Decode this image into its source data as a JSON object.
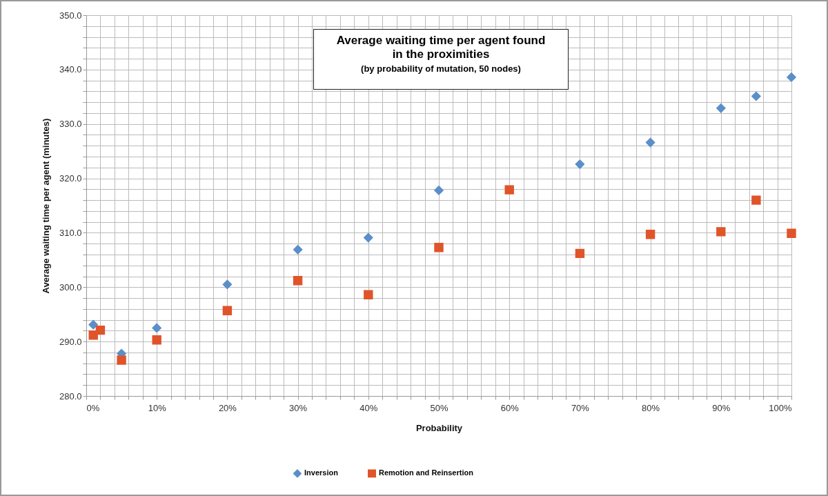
{
  "chart_data": {
    "type": "scatter",
    "title": "Average waiting time per agent found\nin the proximities",
    "subtitle": "(by probability of mutation, 50 nodes)",
    "xlabel": "Probability",
    "ylabel": "Average waiting time per agent (minutes)",
    "series": [
      {
        "name": "Inversion",
        "color": "#5b8fc9",
        "marker": "diamond",
        "x": [
          1,
          5,
          10,
          20,
          30,
          40,
          50,
          70,
          80,
          90,
          95,
          100
        ],
        "values": [
          293.1,
          287.8,
          292.5,
          300.5,
          306.9,
          309.1,
          317.8,
          322.6,
          326.6,
          332.9,
          335.1,
          338.6
        ]
      },
      {
        "name": "Remotion and Reinsertion",
        "color": "#e0542a",
        "marker": "square",
        "x": [
          1,
          2,
          5,
          10,
          20,
          30,
          40,
          50,
          60,
          70,
          80,
          90,
          95,
          100
        ],
        "values": [
          291.2,
          292.1,
          286.6,
          290.3,
          295.7,
          301.2,
          298.6,
          307.3,
          317.9,
          306.2,
          309.7,
          310.2,
          316.0,
          309.9
        ]
      }
    ],
    "xlim": [
      0,
      100
    ],
    "ylim": [
      280,
      350
    ],
    "xticks": [
      {
        "value": 0,
        "label": "0%"
      },
      {
        "value": 2,
        "label": null
      },
      {
        "value": 4,
        "label": null
      },
      {
        "value": 6,
        "label": null
      },
      {
        "value": 8,
        "label": null
      },
      {
        "value": 10,
        "label": "10%"
      },
      {
        "value": 12,
        "label": null
      },
      {
        "value": 14,
        "label": null
      },
      {
        "value": 16,
        "label": null
      },
      {
        "value": 18,
        "label": null
      },
      {
        "value": 20,
        "label": "20%"
      },
      {
        "value": 22,
        "label": null
      },
      {
        "value": 24,
        "label": null
      },
      {
        "value": 26,
        "label": null
      },
      {
        "value": 28,
        "label": null
      },
      {
        "value": 30,
        "label": "30%"
      },
      {
        "value": 32,
        "label": null
      },
      {
        "value": 34,
        "label": null
      },
      {
        "value": 36,
        "label": null
      },
      {
        "value": 38,
        "label": null
      },
      {
        "value": 40,
        "label": "40%"
      },
      {
        "value": 42,
        "label": null
      },
      {
        "value": 44,
        "label": null
      },
      {
        "value": 46,
        "label": null
      },
      {
        "value": 48,
        "label": null
      },
      {
        "value": 50,
        "label": "50%"
      },
      {
        "value": 52,
        "label": null
      },
      {
        "value": 54,
        "label": null
      },
      {
        "value": 56,
        "label": null
      },
      {
        "value": 58,
        "label": null
      },
      {
        "value": 60,
        "label": "60%"
      },
      {
        "value": 62,
        "label": null
      },
      {
        "value": 64,
        "label": null
      },
      {
        "value": 66,
        "label": null
      },
      {
        "value": 68,
        "label": null
      },
      {
        "value": 70,
        "label": "70%"
      },
      {
        "value": 72,
        "label": null
      },
      {
        "value": 74,
        "label": null
      },
      {
        "value": 76,
        "label": null
      },
      {
        "value": 78,
        "label": null
      },
      {
        "value": 80,
        "label": "80%"
      },
      {
        "value": 82,
        "label": null
      },
      {
        "value": 84,
        "label": null
      },
      {
        "value": 86,
        "label": null
      },
      {
        "value": 88,
        "label": null
      },
      {
        "value": 90,
        "label": "90%"
      },
      {
        "value": 92,
        "label": null
      },
      {
        "value": 94,
        "label": null
      },
      {
        "value": 96,
        "label": null
      },
      {
        "value": 98,
        "label": null
      },
      {
        "value": 100,
        "label": "100%"
      }
    ],
    "yticks": [
      {
        "value": 280,
        "label": "280.0"
      },
      {
        "value": 282,
        "label": null
      },
      {
        "value": 284,
        "label": null
      },
      {
        "value": 286,
        "label": null
      },
      {
        "value": 288,
        "label": null
      },
      {
        "value": 290,
        "label": "290.0"
      },
      {
        "value": 292,
        "label": null
      },
      {
        "value": 294,
        "label": null
      },
      {
        "value": 296,
        "label": null
      },
      {
        "value": 298,
        "label": null
      },
      {
        "value": 300,
        "label": "300.0"
      },
      {
        "value": 302,
        "label": null
      },
      {
        "value": 304,
        "label": null
      },
      {
        "value": 306,
        "label": null
      },
      {
        "value": 308,
        "label": null
      },
      {
        "value": 310,
        "label": "310.0"
      },
      {
        "value": 312,
        "label": null
      },
      {
        "value": 314,
        "label": null
      },
      {
        "value": 316,
        "label": null
      },
      {
        "value": 318,
        "label": null
      },
      {
        "value": 320,
        "label": "320.0"
      },
      {
        "value": 322,
        "label": null
      },
      {
        "value": 324,
        "label": null
      },
      {
        "value": 326,
        "label": null
      },
      {
        "value": 328,
        "label": null
      },
      {
        "value": 330,
        "label": "330.0"
      },
      {
        "value": 332,
        "label": null
      },
      {
        "value": 334,
        "label": null
      },
      {
        "value": 336,
        "label": null
      },
      {
        "value": 338,
        "label": null
      },
      {
        "value": 340,
        "label": "340.0"
      },
      {
        "value": 342,
        "label": null
      },
      {
        "value": 344,
        "label": null
      },
      {
        "value": 346,
        "label": null
      },
      {
        "value": 348,
        "label": null
      },
      {
        "value": 350,
        "label": "350.0"
      }
    ],
    "grid": true,
    "legend": "bottom"
  }
}
